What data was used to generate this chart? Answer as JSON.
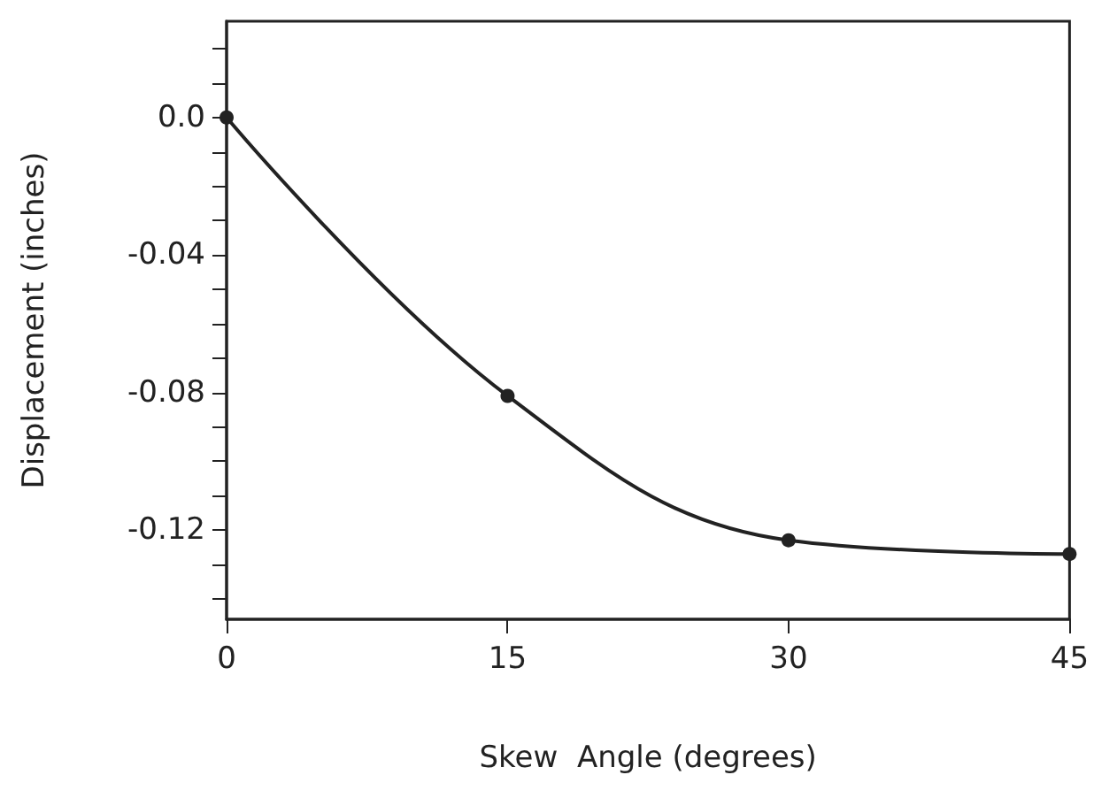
{
  "chart_data": {
    "type": "line",
    "xlabel": "Skew  Angle (degrees)",
    "ylabel": "Displacement (inches)",
    "x": [
      0,
      15,
      30,
      45
    ],
    "series": [
      {
        "color": "#222222",
        "values": [
          0,
          -0.081,
          -0.123,
          -0.127
        ]
      }
    ],
    "xlim": [
      0,
      45
    ],
    "xticks": [
      0,
      15,
      30,
      45
    ],
    "ylim": [
      -0.146,
      0.028
    ],
    "yticks": [
      {
        "value": 0.02,
        "label": null
      },
      {
        "value": 0.01,
        "label": null
      },
      {
        "value": 0,
        "label": "0.0"
      },
      {
        "value": -0.01,
        "label": null
      },
      {
        "value": -0.02,
        "label": null
      },
      {
        "value": -0.03,
        "label": null
      },
      -0.04,
      {
        "value": -0.05,
        "label": null
      },
      {
        "value": -0.06,
        "label": null
      },
      {
        "value": -0.07,
        "label": null
      },
      -0.08,
      {
        "value": -0.09,
        "label": null
      },
      {
        "value": -0.1,
        "label": null
      },
      {
        "value": -0.11,
        "label": null
      },
      -0.12,
      {
        "value": -0.13,
        "label": null
      },
      {
        "value": -0.14,
        "label": null
      }
    ],
    "marker": "circle",
    "line_style": "solid",
    "grid": false
  }
}
